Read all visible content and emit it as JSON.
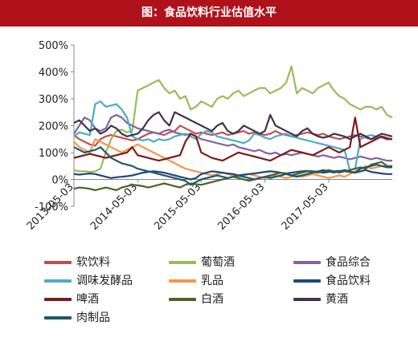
{
  "title": "图：食品饮料行业估值水平",
  "chart_data": {
    "type": "line",
    "ylim": [
      -100,
      500
    ],
    "yticks": [
      "-100%",
      "0%",
      "100%",
      "200%",
      "300%",
      "400%",
      "500%"
    ],
    "y_tick_values": [
      -100,
      0,
      100,
      200,
      300,
      400,
      500
    ],
    "x_tick_labels": [
      "2013-05-03",
      "2014-05-03",
      "2015-05-03",
      "2016-05-03",
      "2017-05-03"
    ],
    "x_tick_positions": [
      0,
      12,
      24,
      36,
      48
    ],
    "xlim": [
      0,
      60
    ],
    "series": [
      {
        "name": "软饮料",
        "color": "#c0504d",
        "values": [
          165,
          150,
          140,
          130,
          125,
          150,
          160,
          165,
          160,
          155,
          150,
          145,
          150,
          160,
          170,
          175,
          170,
          165,
          175,
          180,
          200,
          190,
          180,
          170,
          175,
          170,
          165,
          170,
          175,
          165,
          170,
          175,
          180,
          170,
          175,
          170,
          165,
          170,
          180,
          170,
          165,
          160,
          165,
          170,
          175,
          170,
          165,
          170,
          160,
          155,
          150,
          155,
          160,
          165,
          160,
          155,
          150,
          155,
          160,
          155,
          150
        ]
      },
      {
        "name": "葡萄酒",
        "color": "#9bbb59",
        "values": [
          35,
          30,
          30,
          28,
          30,
          40,
          100,
          150,
          180,
          185,
          175,
          180,
          330,
          340,
          350,
          360,
          370,
          340,
          320,
          330,
          300,
          310,
          260,
          270,
          290,
          280,
          270,
          300,
          310,
          300,
          320,
          330,
          310,
          320,
          330,
          340,
          340,
          320,
          330,
          340,
          360,
          420,
          320,
          340,
          330,
          320,
          340,
          350,
          360,
          330,
          310,
          300,
          280,
          270,
          260,
          270,
          270,
          260,
          270,
          240,
          230
        ]
      },
      {
        "name": "食品综合",
        "color": "#8064a2",
        "values": [
          170,
          200,
          230,
          220,
          190,
          180,
          190,
          230,
          240,
          230,
          210,
          200,
          190,
          185,
          180,
          175,
          170,
          180,
          185,
          175,
          170,
          165,
          170,
          160,
          150,
          145,
          140,
          135,
          130,
          125,
          130,
          120,
          115,
          110,
          105,
          110,
          100,
          95,
          100,
          90,
          95,
          90,
          95,
          100,
          95,
          90,
          85,
          90,
          85,
          80,
          85,
          80,
          75,
          80,
          85,
          80,
          75,
          80,
          75,
          70,
          70
        ]
      },
      {
        "name": "调味发酵品",
        "color": "#4bacc6",
        "values": [
          160,
          175,
          170,
          165,
          280,
          290,
          270,
          275,
          280,
          260,
          230,
          160,
          150,
          145,
          150,
          140,
          150,
          145,
          150,
          160,
          165,
          170,
          160,
          150,
          170,
          180,
          175,
          160,
          155,
          150,
          145,
          140,
          135,
          145,
          170,
          165,
          155,
          150,
          160,
          165,
          170,
          160,
          155,
          150,
          145,
          140,
          135,
          130,
          125,
          120,
          115,
          110,
          35,
          40,
          150,
          160,
          165,
          160,
          155,
          150,
          150
        ]
      },
      {
        "name": "乳品",
        "color": "#f79646",
        "values": [
          140,
          120,
          110,
          100,
          150,
          140,
          130,
          120,
          110,
          100,
          110,
          120,
          130,
          120,
          110,
          100,
          90,
          80,
          70,
          60,
          50,
          40,
          35,
          30,
          25,
          20,
          15,
          20,
          25,
          20,
          15,
          10,
          15,
          20,
          15,
          10,
          5,
          10,
          15,
          10,
          5,
          10,
          15,
          10,
          15,
          20,
          15,
          10,
          5,
          10,
          15,
          10,
          20,
          30,
          40,
          50,
          40,
          45,
          50,
          50,
          45
        ]
      },
      {
        "name": "食品饮料",
        "color": "#1f497d",
        "values": [
          20,
          18,
          20,
          22,
          20,
          15,
          10,
          5,
          8,
          10,
          12,
          15,
          20,
          25,
          28,
          30,
          28,
          25,
          20,
          15,
          10,
          5,
          0,
          5,
          20,
          25,
          30,
          28,
          25,
          22,
          20,
          15,
          18,
          20,
          22,
          25,
          28,
          30,
          28,
          25,
          22,
          25,
          28,
          30,
          32,
          30,
          28,
          25,
          28,
          30,
          32,
          30,
          28,
          25,
          30,
          35,
          28,
          25,
          22,
          20,
          20
        ]
      },
      {
        "name": "啤酒",
        "color": "#7f1a1a",
        "values": [
          80,
          85,
          90,
          95,
          90,
          85,
          80,
          85,
          90,
          95,
          100,
          120,
          90,
          85,
          80,
          75,
          70,
          75,
          80,
          85,
          90,
          140,
          170,
          160,
          100,
          90,
          80,
          75,
          70,
          80,
          90,
          100,
          95,
          90,
          85,
          80,
          75,
          70,
          80,
          90,
          100,
          110,
          105,
          100,
          95,
          90,
          100,
          110,
          120,
          110,
          100,
          110,
          120,
          230,
          120,
          130,
          140,
          150,
          160,
          150,
          150
        ]
      },
      {
        "name": "白酒",
        "color": "#4f6228",
        "values": [
          -35,
          -30,
          -32,
          -35,
          -40,
          -35,
          -30,
          -35,
          -40,
          -30,
          -25,
          -20,
          -22,
          -25,
          -30,
          -25,
          -20,
          -15,
          -20,
          -25,
          -30,
          -20,
          -15,
          -18,
          -20,
          -15,
          -10,
          -5,
          0,
          5,
          10,
          5,
          0,
          -5,
          0,
          5,
          10,
          15,
          20,
          25,
          20,
          15,
          20,
          25,
          30,
          28,
          25,
          30,
          35,
          30,
          25,
          30,
          35,
          40,
          45,
          40,
          55,
          60,
          65,
          50,
          50
        ]
      },
      {
        "name": "黄酒",
        "color": "#403152",
        "values": [
          210,
          220,
          200,
          180,
          190,
          170,
          180,
          200,
          190,
          170,
          160,
          165,
          170,
          190,
          220,
          240,
          250,
          220,
          200,
          250,
          240,
          230,
          220,
          210,
          200,
          190,
          180,
          200,
          210,
          180,
          170,
          180,
          200,
          190,
          180,
          170,
          180,
          240,
          200,
          190,
          180,
          170,
          160,
          180,
          190,
          170,
          160,
          155,
          160,
          170,
          165,
          160,
          150,
          160,
          170,
          160,
          150,
          160,
          170,
          165,
          160
        ]
      },
      {
        "name": "肉制品",
        "color": "#215868",
        "values": [
          120,
          110,
          100,
          105,
          110,
          120,
          100,
          80,
          70,
          60,
          55,
          50,
          40,
          35,
          30,
          25,
          20,
          15,
          10,
          5,
          0,
          -5,
          -20,
          -10,
          0,
          5,
          10,
          15,
          10,
          5,
          10,
          15,
          10,
          5,
          0,
          5,
          10,
          5,
          10,
          15,
          20,
          15,
          10,
          15,
          20,
          25,
          30,
          35,
          30,
          25,
          30,
          35,
          30,
          25,
          40,
          45,
          50,
          55,
          50,
          45,
          45
        ]
      }
    ]
  }
}
